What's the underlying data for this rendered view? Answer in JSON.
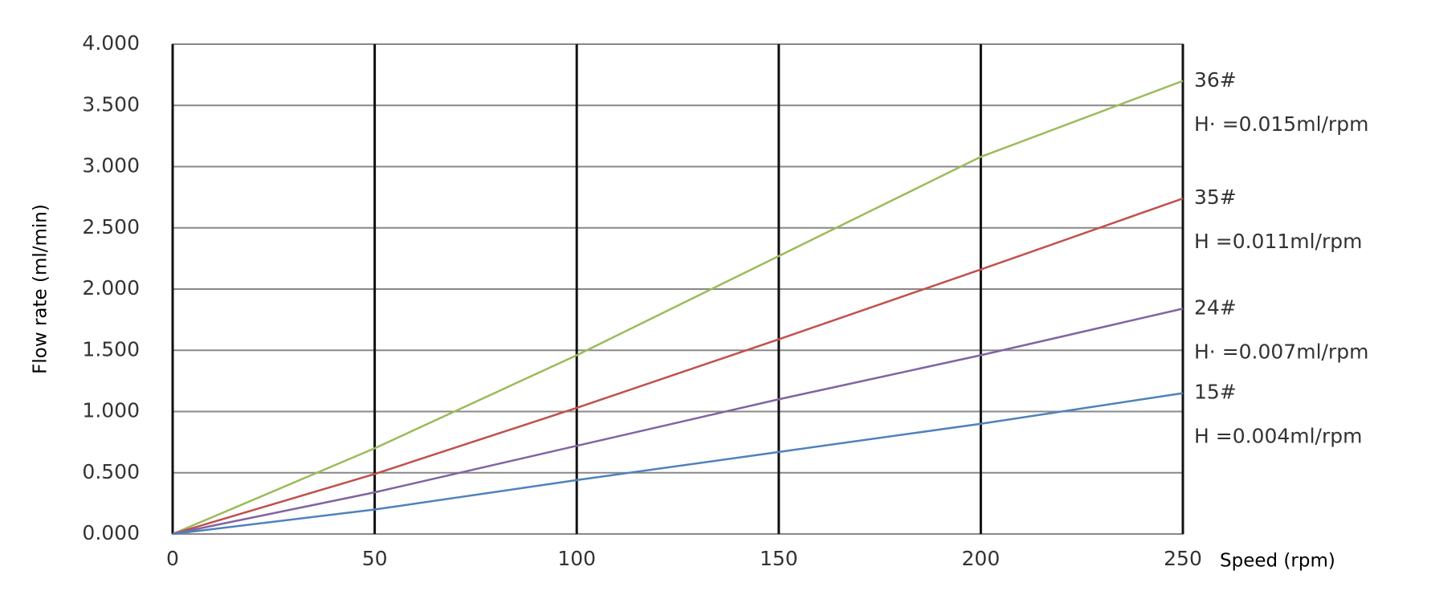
{
  "chart_data": {
    "type": "line",
    "x_label": "Speed (rpm)",
    "y_label": "Flow rate (ml/min)",
    "x": [
      0,
      50,
      100,
      150,
      200,
      250
    ],
    "xlim": [
      0,
      250
    ],
    "xticks": [
      0,
      50,
      100,
      150,
      200,
      250
    ],
    "ylim": [
      0,
      4
    ],
    "yticks": [
      {
        "value": 0,
        "label": "0.000"
      },
      {
        "value": 0.5,
        "label": "0.500"
      },
      {
        "value": 1,
        "label": "1.000"
      },
      {
        "value": 1.5,
        "label": "1.500"
      },
      {
        "value": 2,
        "label": "2.000"
      },
      {
        "value": 2.5,
        "label": "2.500"
      },
      {
        "value": 3,
        "label": "3.000"
      },
      {
        "value": 3.5,
        "label": "3.500"
      },
      {
        "value": 4,
        "label": "4.000"
      }
    ],
    "grid": true,
    "series": [
      {
        "name": "36#",
        "annotation": "H· =0.015ml/rpm",
        "color": "#9bbb59",
        "values": [
          0,
          0.7,
          1.46,
          2.27,
          3.08,
          3.7
        ]
      },
      {
        "name": "35#",
        "annotation": "H =0.011ml/rpm",
        "color": "#c0504d",
        "values": [
          0,
          0.49,
          1.03,
          1.59,
          2.16,
          2.74
        ]
      },
      {
        "name": "24#",
        "annotation": "H· =0.007ml/rpm",
        "color": "#8064a2",
        "values": [
          0,
          0.34,
          0.72,
          1.1,
          1.46,
          1.84
        ]
      },
      {
        "name": "15#",
        "annotation": "H =0.004ml/rpm",
        "color": "#4f81bd",
        "values": [
          0,
          0.2,
          0.44,
          0.67,
          0.9,
          1.15
        ]
      }
    ]
  }
}
